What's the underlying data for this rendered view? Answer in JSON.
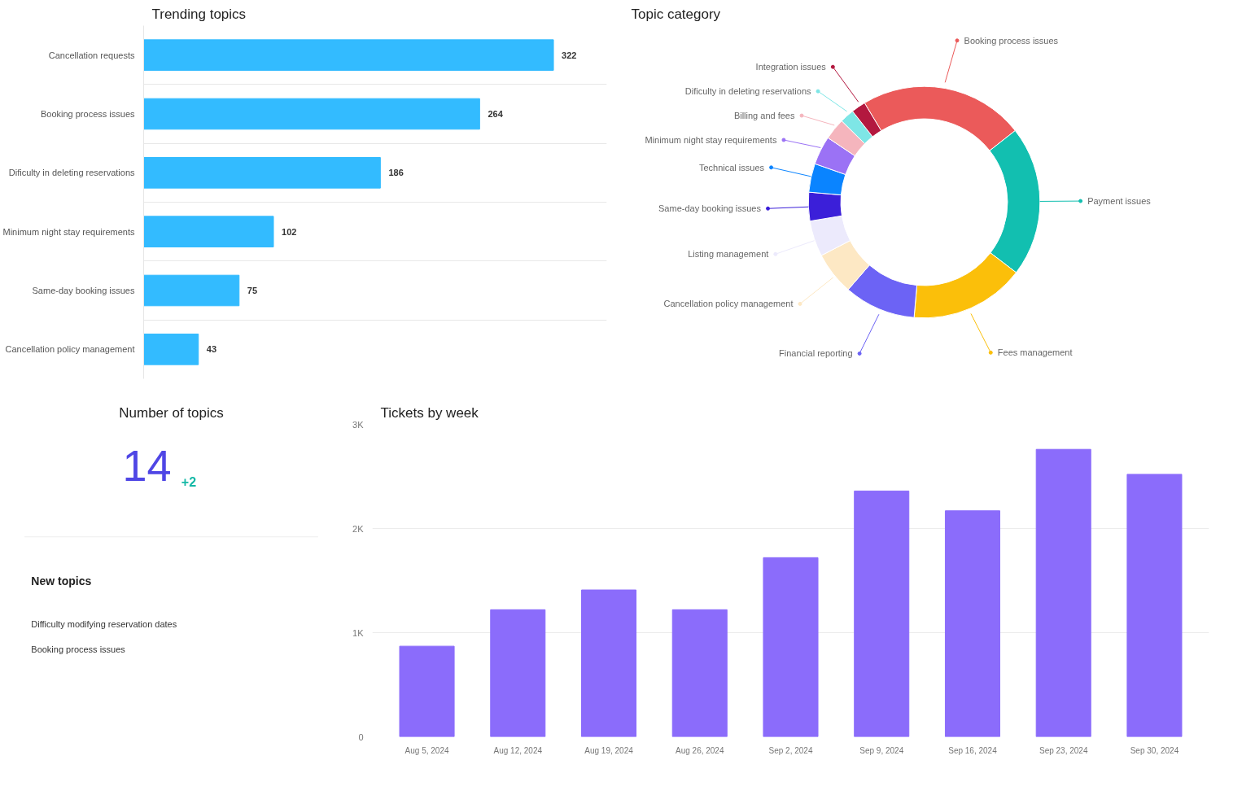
{
  "chart_data": [
    {
      "type": "bar",
      "title": "Trending topics",
      "orientation": "horizontal",
      "categories": [
        "Cancellation requests",
        "Booking process issues",
        "Dificulty in deleting reservations",
        "Minimum night stay requirements",
        "Same-day booking issues",
        "Cancellation policy management"
      ],
      "values": [
        322,
        264,
        186,
        102,
        75,
        43
      ],
      "color": "#33bbff",
      "data_labels": true,
      "grid": "y",
      "tick_labels": "y"
    },
    {
      "type": "donut",
      "title": "Topic category",
      "categories": [
        "Booking process issues",
        "Payment issues",
        "Fees management",
        "Financial reporting",
        "Cancellation policy management",
        "Listing management",
        "Same-day booking issues",
        "Technical issues",
        "Minimum night stay requirements",
        "Billing and fees",
        "Dificulty in deleting reservations",
        "Integration issues"
      ],
      "values": [
        23,
        21,
        16,
        10,
        6,
        5,
        4,
        4,
        4,
        3,
        2,
        2
      ],
      "legend": "left",
      "colors": [
        "#eb5a5a",
        "#12bfb0",
        "#fbbf0a",
        "#6c63f5",
        "#fde8c4",
        "#eceafc",
        "#3b1fd9",
        "#0a84ff",
        "#9b72f5",
        "#f5b5bd",
        "#7ee6e6",
        "#b3183f"
      ]
    },
    {
      "type": "other",
      "title": "Number of topics",
      "annotations": [
        "14",
        "+2",
        "New topics",
        "Difficulty modifying reservation dates",
        "Booking process issues"
      ]
    },
    {
      "type": "bar",
      "title": "Tickets by week",
      "categories": [
        "Aug 5, 2024",
        "Aug 12, 2024",
        "Aug 19, 2024",
        "Aug 26, 2024",
        "Sep 2, 2024",
        "Sep 9, 2024",
        "Sep 16, 2024",
        "Sep 23, 2024",
        "Sep 30, 2024"
      ],
      "values": [
        870,
        1220,
        1410,
        1220,
        1720,
        2360,
        2170,
        2760,
        2520
      ],
      "color": "#8b6cfb",
      "ylim": [
        0,
        3000
      ],
      "yticks": [
        0,
        {
          "value": 1000,
          "label": "1K"
        },
        {
          "value": 2000,
          "label": "2K"
        },
        {
          "value": 3000,
          "label": "3K"
        }
      ],
      "grid": "y"
    }
  ]
}
